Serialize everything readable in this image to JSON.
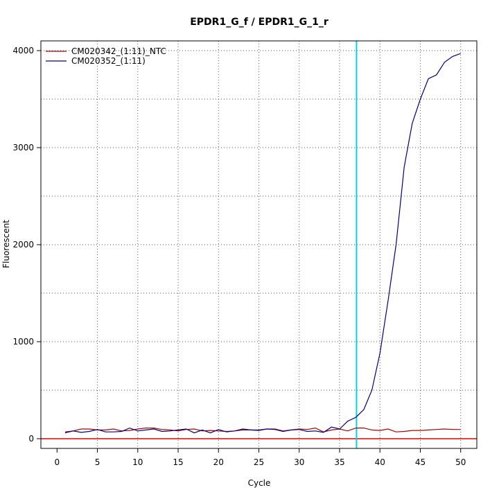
{
  "chart_data": {
    "type": "line",
    "title": "EPDR1_G_f / EPDR1_G_1_r",
    "xlabel": "Cycle",
    "ylabel": "Fluorescent",
    "xlim": [
      -2,
      52
    ],
    "ylim": [
      -100,
      4100
    ],
    "x_ticks": [
      0,
      5,
      10,
      15,
      20,
      25,
      30,
      35,
      40,
      45,
      50
    ],
    "y_ticks": [
      0,
      1000,
      2000,
      3000,
      4000
    ],
    "x_grid": [
      5,
      10,
      15,
      20,
      25,
      30,
      35,
      40,
      45,
      50
    ],
    "y_grid": [
      500,
      1000,
      1500,
      2000,
      2500,
      3000,
      3500,
      4000
    ],
    "grid": true,
    "legend_position": "top-left",
    "threshold_cycle": 37.1,
    "baseline": 0,
    "threshold_color": "#00d8d8",
    "baseline_color": "#dd0000",
    "series": [
      {
        "name": "CM020342_(1:11)_NTC",
        "color": "#aa0000",
        "x": [
          1,
          2,
          3,
          4,
          5,
          6,
          7,
          8,
          9,
          10,
          11,
          12,
          13,
          14,
          15,
          16,
          17,
          18,
          19,
          20,
          21,
          22,
          23,
          24,
          25,
          26,
          27,
          28,
          29,
          30,
          31,
          32,
          33,
          34,
          35,
          36,
          37,
          38,
          39,
          40,
          41,
          42,
          43,
          44,
          45,
          46,
          47,
          48,
          49,
          50
        ],
        "y": [
          70,
          80,
          100,
          100,
          90,
          90,
          100,
          80,
          85,
          100,
          110,
          110,
          95,
          90,
          80,
          95,
          100,
          80,
          85,
          80,
          75,
          80,
          90,
          90,
          90,
          100,
          100,
          80,
          90,
          100,
          95,
          110,
          70,
          90,
          100,
          80,
          110,
          110,
          90,
          85,
          100,
          70,
          75,
          85,
          85,
          90,
          95,
          100,
          95,
          95
        ]
      },
      {
        "name": "CM020352_(1:11)",
        "color": "#000080",
        "x": [
          1,
          2,
          3,
          4,
          5,
          6,
          7,
          8,
          9,
          10,
          11,
          12,
          13,
          14,
          15,
          16,
          17,
          18,
          19,
          20,
          21,
          22,
          23,
          24,
          25,
          26,
          27,
          28,
          29,
          30,
          31,
          32,
          33,
          34,
          35,
          36,
          37,
          38,
          39,
          40,
          41,
          42,
          43,
          44,
          45,
          46,
          47,
          48,
          49,
          50
        ],
        "y": [
          60,
          80,
          65,
          75,
          95,
          70,
          70,
          75,
          110,
          80,
          90,
          100,
          75,
          80,
          90,
          100,
          60,
          90,
          60,
          95,
          70,
          80,
          100,
          90,
          85,
          100,
          95,
          75,
          90,
          95,
          75,
          80,
          65,
          120,
          100,
          180,
          220,
          300,
          500,
          880,
          1420,
          2000,
          2800,
          3250,
          3500,
          3710,
          3750,
          3880,
          3940,
          3970
        ]
      }
    ]
  }
}
